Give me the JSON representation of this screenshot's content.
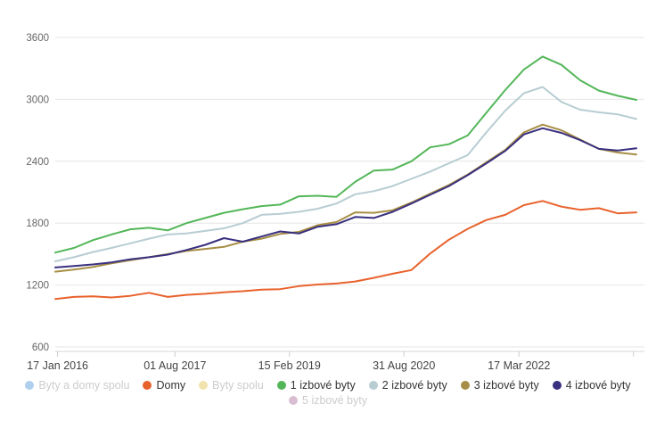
{
  "chart_data": {
    "type": "line",
    "title": "",
    "grid": true,
    "legend_position": "bottom-center",
    "y_axis": {
      "min": 600,
      "max": 3600,
      "tick_step": 600,
      "tick_labels": [
        "600",
        "1200",
        "1800",
        "2400",
        "3000",
        "3600"
      ]
    },
    "x_axis": {
      "labels": [
        {
          "text": "17 Jan 2016",
          "pos": 0.004
        },
        {
          "text": "01 Aug 2017",
          "pos": 0.206
        },
        {
          "text": "15 Feb 2019",
          "pos": 0.403
        },
        {
          "text": "31 Aug 2020",
          "pos": 0.6
        },
        {
          "text": "17 Mar 2022",
          "pos": 0.798
        }
      ],
      "extra_tick_pos": [
        0.995
      ]
    },
    "series": [
      {
        "name": "Byty a domy spolu",
        "color": "#aecfed",
        "visible": false,
        "values": []
      },
      {
        "name": "Domy",
        "color": "#e8622c",
        "visible": true,
        "values": [
          1065,
          1085,
          1090,
          1080,
          1095,
          1125,
          1085,
          1105,
          1115,
          1130,
          1140,
          1155,
          1160,
          1190,
          1205,
          1215,
          1235,
          1270,
          1310,
          1345,
          1505,
          1640,
          1745,
          1830,
          1880,
          1975,
          2015,
          1960,
          1930,
          1945,
          1895,
          1905
        ]
      },
      {
        "name": "Byty spolu",
        "color": "#f1e3ae",
        "visible": false,
        "values": []
      },
      {
        "name": "1 izbové byty",
        "color": "#53b658",
        "visible": true,
        "values": [
          1515,
          1560,
          1635,
          1690,
          1740,
          1755,
          1730,
          1800,
          1850,
          1900,
          1935,
          1965,
          1980,
          2060,
          2065,
          2055,
          2200,
          2310,
          2320,
          2400,
          2535,
          2565,
          2650,
          2870,
          3090,
          3290,
          3415,
          3335,
          3185,
          3085,
          3035,
          2995
        ]
      },
      {
        "name": "2 izbové byty",
        "color": "#b7cdd2",
        "visible": true,
        "values": [
          1430,
          1470,
          1520,
          1560,
          1605,
          1650,
          1690,
          1700,
          1725,
          1750,
          1800,
          1880,
          1890,
          1910,
          1940,
          1990,
          2080,
          2110,
          2160,
          2230,
          2300,
          2380,
          2460,
          2680,
          2890,
          3060,
          3120,
          2975,
          2900,
          2875,
          2855,
          2810
        ]
      },
      {
        "name": "3 izbové byty",
        "color": "#a78e46",
        "visible": true,
        "values": [
          1330,
          1350,
          1375,
          1410,
          1440,
          1470,
          1500,
          1530,
          1550,
          1570,
          1620,
          1650,
          1695,
          1715,
          1780,
          1810,
          1905,
          1900,
          1925,
          2000,
          2085,
          2170,
          2270,
          2390,
          2510,
          2680,
          2755,
          2700,
          2610,
          2520,
          2485,
          2465
        ]
      },
      {
        "name": "4 izbové byty",
        "color": "#39307f",
        "visible": true,
        "values": [
          1370,
          1385,
          1400,
          1420,
          1450,
          1470,
          1495,
          1540,
          1590,
          1655,
          1620,
          1670,
          1720,
          1700,
          1765,
          1790,
          1860,
          1850,
          1910,
          1990,
          2075,
          2160,
          2265,
          2380,
          2500,
          2660,
          2720,
          2675,
          2605,
          2520,
          2505,
          2525
        ]
      },
      {
        "name": "5 izbové byty",
        "color": "#d9bed3",
        "visible": false,
        "values": []
      }
    ],
    "legend_rows": [
      [
        0,
        1,
        2,
        3,
        4,
        5,
        6
      ],
      [
        7
      ]
    ]
  },
  "style_colors": {
    "gridline": "#e6e6e6",
    "axis_line": "#d6d6d6",
    "tick": "#cccccc",
    "y_label": "#666666",
    "x_label": "#444444",
    "legend_active_text": "#333333",
    "legend_hidden_text": "#cccccc",
    "background": "#ffffff"
  }
}
